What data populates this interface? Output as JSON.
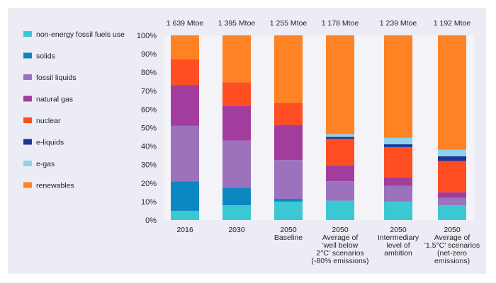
{
  "colors": {
    "panel_background": "#ececf5",
    "plot_background": "#f3f3f8"
  },
  "chart_data": {
    "type": "bar",
    "stacked": true,
    "percent": true,
    "title": "",
    "xlabel": "",
    "ylabel": "",
    "ylim": [
      0,
      100
    ],
    "y_ticks": [
      0,
      10,
      20,
      30,
      40,
      50,
      60,
      70,
      80,
      90,
      100
    ],
    "y_tick_suffix": "%",
    "grid": false,
    "legend_position": "left",
    "categories": [
      "2016",
      "2030",
      "2050\nBaseline",
      "2050\nAverage of\n'well below\n2°C' scenarios\n(-80% emissions)",
      "2050\nIntermediary\nlevel of\nambition",
      "2050\nAverage of\n'1.5°C' scenarios\n(net-zero\nemissions)"
    ],
    "totals": [
      "1 639 Mtoe",
      "1 395 Mtoe",
      "1 255 Mtoe",
      "1 178 Mtoe",
      "1 239 Mtoe",
      "1 192 Mtoe"
    ],
    "series": [
      {
        "name": "non-energy fossil fuels use",
        "color": "#3cc8d2",
        "values": [
          5,
          8,
          10,
          10.5,
          10,
          8
        ]
      },
      {
        "name": "solids",
        "color": "#0b87c2",
        "values": [
          16,
          9.5,
          1.5,
          0,
          0,
          0
        ]
      },
      {
        "name": "fossil liquids",
        "color": "#9b72bb",
        "values": [
          30,
          25.5,
          21,
          10.5,
          8.5,
          4
        ]
      },
      {
        "name": "natural gas",
        "color": "#a23d9e",
        "values": [
          22,
          19,
          19,
          8.5,
          4.5,
          3
        ]
      },
      {
        "name": "nuclear",
        "color": "#ff4e22",
        "values": [
          14,
          12.5,
          12,
          14.5,
          16.5,
          17
        ]
      },
      {
        "name": "e-liquids",
        "color": "#1d3596",
        "values": [
          0,
          0,
          0,
          1,
          1.5,
          2.5
        ]
      },
      {
        "name": "e-gas",
        "color": "#8fd2ee",
        "values": [
          0,
          0,
          0,
          1.5,
          3.5,
          3.5
        ]
      },
      {
        "name": "renewables",
        "color": "#ff8224",
        "values": [
          13,
          25.5,
          36.5,
          53.5,
          55.5,
          62
        ]
      }
    ]
  }
}
